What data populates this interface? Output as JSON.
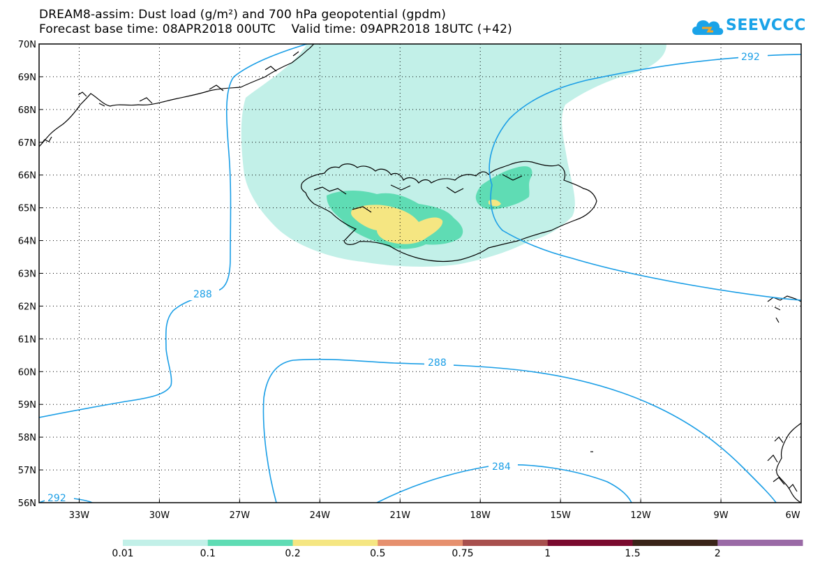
{
  "header": {
    "title_line1": "DREAM8-assim: Dust load (g/m²) and 700 hPa geopotential (gpdm)",
    "title_line2": "Forecast base time: 08APR2018 00UTC    Valid time: 09APR2018 18UTC (+42)"
  },
  "logo": {
    "text": "SEEVCCC",
    "icon": "cloud-icon"
  },
  "map": {
    "latitude_labels": [
      "70N",
      "69N",
      "68N",
      "67N",
      "66N",
      "65N",
      "64N",
      "63N",
      "62N",
      "61N",
      "60N",
      "59N",
      "58N",
      "57N",
      "56N"
    ],
    "longitude_labels": [
      "33W",
      "30W",
      "27W",
      "24W",
      "21W",
      "18W",
      "15W",
      "12W",
      "9W",
      "6W"
    ],
    "lon_range": [
      -34.5,
      -6
    ],
    "lat_range": [
      56,
      70
    ],
    "contour_labels": [
      "292",
      "288",
      "288",
      "284",
      "292"
    ],
    "contour_color": "#1a9ee6",
    "coast_color": "#000000"
  },
  "colorbar": {
    "labels": [
      "0.01",
      "0.1",
      "0.2",
      "0.5",
      "0.75",
      "1",
      "1.5",
      "2"
    ],
    "colors": [
      "#c2f0e8",
      "#5fdcb4",
      "#f5e682",
      "#e6906e",
      "#a8504e",
      "#7a0a2e",
      "#3a2418",
      "#9a6aa6"
    ]
  }
}
